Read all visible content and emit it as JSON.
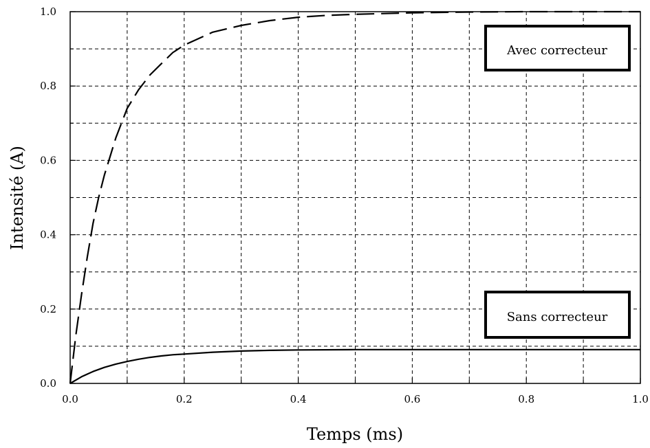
{
  "chart_data": {
    "type": "line",
    "xlabel": "Temps (ms)",
    "ylabel": "Intensité (A)",
    "xlim": [
      0,
      1.0
    ],
    "ylim": [
      0,
      1.0
    ],
    "x_ticks": [
      "0.0",
      "0.2",
      "0.4",
      "0.6",
      "0.8",
      "1.0"
    ],
    "y_ticks": [
      "0.0",
      "0.2",
      "0.4",
      "0.6",
      "0.8",
      "1.0"
    ],
    "grid": true,
    "series": [
      {
        "name": "Avec correcteur",
        "line_style": "dashed",
        "color": "#000000",
        "x": [
          0,
          0.01,
          0.02,
          0.03,
          0.04,
          0.05,
          0.06,
          0.07,
          0.08,
          0.09,
          0.1,
          0.12,
          0.14,
          0.16,
          0.18,
          0.2,
          0.25,
          0.3,
          0.35,
          0.4,
          0.45,
          0.5,
          0.6,
          0.7,
          0.8,
          0.9,
          1.0
        ],
        "values": [
          0,
          0.13,
          0.24,
          0.34,
          0.43,
          0.5,
          0.56,
          0.61,
          0.66,
          0.7,
          0.74,
          0.79,
          0.83,
          0.86,
          0.89,
          0.91,
          0.945,
          0.963,
          0.976,
          0.985,
          0.99,
          0.993,
          0.997,
          0.999,
          1.0,
          1.0,
          1.0
        ]
      },
      {
        "name": "Sans correcteur",
        "line_style": "solid",
        "color": "#000000",
        "x": [
          0,
          0.02,
          0.04,
          0.06,
          0.08,
          0.1,
          0.12,
          0.14,
          0.16,
          0.18,
          0.2,
          0.25,
          0.3,
          0.35,
          0.4,
          0.5,
          0.6,
          0.7,
          0.8,
          0.9,
          1.0
        ],
        "values": [
          0,
          0.018,
          0.032,
          0.043,
          0.052,
          0.059,
          0.065,
          0.07,
          0.074,
          0.077,
          0.079,
          0.084,
          0.087,
          0.089,
          0.09,
          0.091,
          0.091,
          0.091,
          0.091,
          0.091,
          0.091
        ]
      }
    ],
    "legend_boxes": [
      {
        "label": "Avec correcteur",
        "placement": "top-right"
      },
      {
        "label": "Sans correcteur",
        "placement": "lower-right"
      }
    ]
  }
}
